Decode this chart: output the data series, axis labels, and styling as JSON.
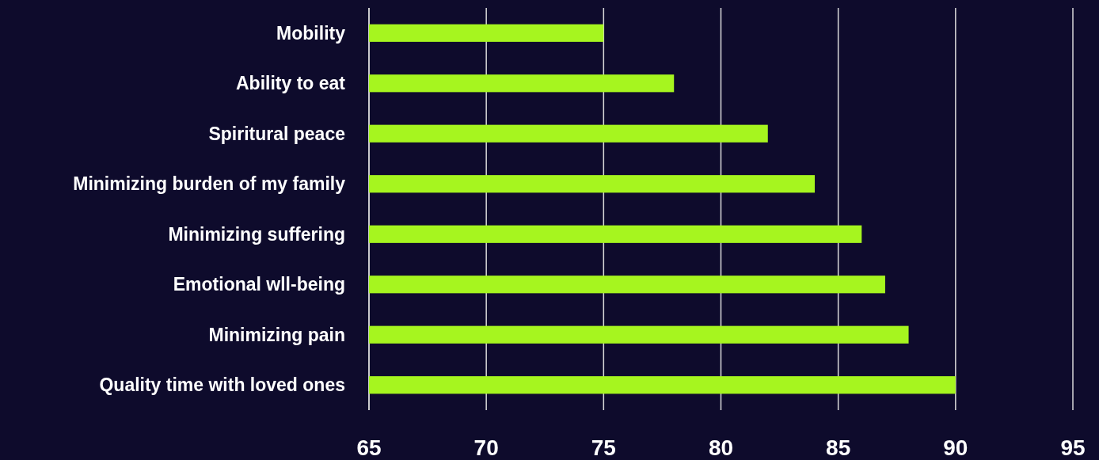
{
  "chart_data": {
    "type": "bar",
    "orientation": "horizontal",
    "categories": [
      "Mobility",
      "Ability to eat",
      "Spiritural peace",
      "Minimizing burden of my family",
      "Minimizing suffering",
      "Emotional wll-being",
      "Minimizing pain",
      "Quality time with loved ones"
    ],
    "values": [
      75,
      78,
      82,
      84,
      86,
      87,
      88,
      90
    ],
    "color": "#a6f51f",
    "xlim": [
      65,
      95
    ],
    "xticks": [
      65,
      70,
      75,
      80,
      85,
      90,
      95
    ],
    "grid": "x"
  }
}
